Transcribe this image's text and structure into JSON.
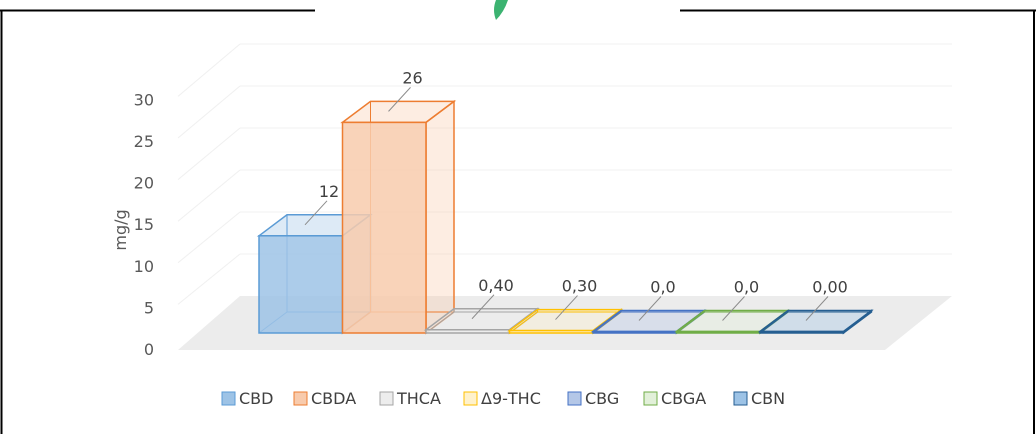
{
  "chart_data": {
    "type": "bar",
    "title": "",
    "xlabel": "",
    "ylabel": "mg/g",
    "ylim": [
      0,
      30
    ],
    "yticks": [
      0,
      5,
      10,
      15,
      20,
      25,
      30
    ],
    "grid": true,
    "legend": "bottom",
    "categories": [
      "CBD",
      "CBDA",
      "THCA",
      "Δ9-THC",
      "CBG",
      "CBGA",
      "CBN"
    ],
    "values": [
      12,
      26,
      0.4,
      0.3,
      0.0,
      0.0,
      0.0
    ],
    "data_labels": [
      "12",
      "26",
      "0,40",
      "0,30",
      "0,0",
      "0,0",
      "0,00"
    ],
    "series": [
      {
        "name": "CBD",
        "fill": "#9DC3E6",
        "stroke": "#5B9BD5"
      },
      {
        "name": "CBDA",
        "fill": "#F8CBAD",
        "stroke": "#ED7D31"
      },
      {
        "name": "THCA",
        "fill": "#EDEDED",
        "stroke": "#A5A5A5"
      },
      {
        "name": "Δ9-THC",
        "fill": "#FFF2CC",
        "stroke": "#FFC000"
      },
      {
        "name": "CBG",
        "fill": "#B4C7E7",
        "stroke": "#4472C4"
      },
      {
        "name": "CBGA",
        "fill": "#E2F0D9",
        "stroke": "#70AD47"
      },
      {
        "name": "CBN",
        "fill": "#9DC3E6",
        "stroke": "#255E91"
      }
    ]
  }
}
